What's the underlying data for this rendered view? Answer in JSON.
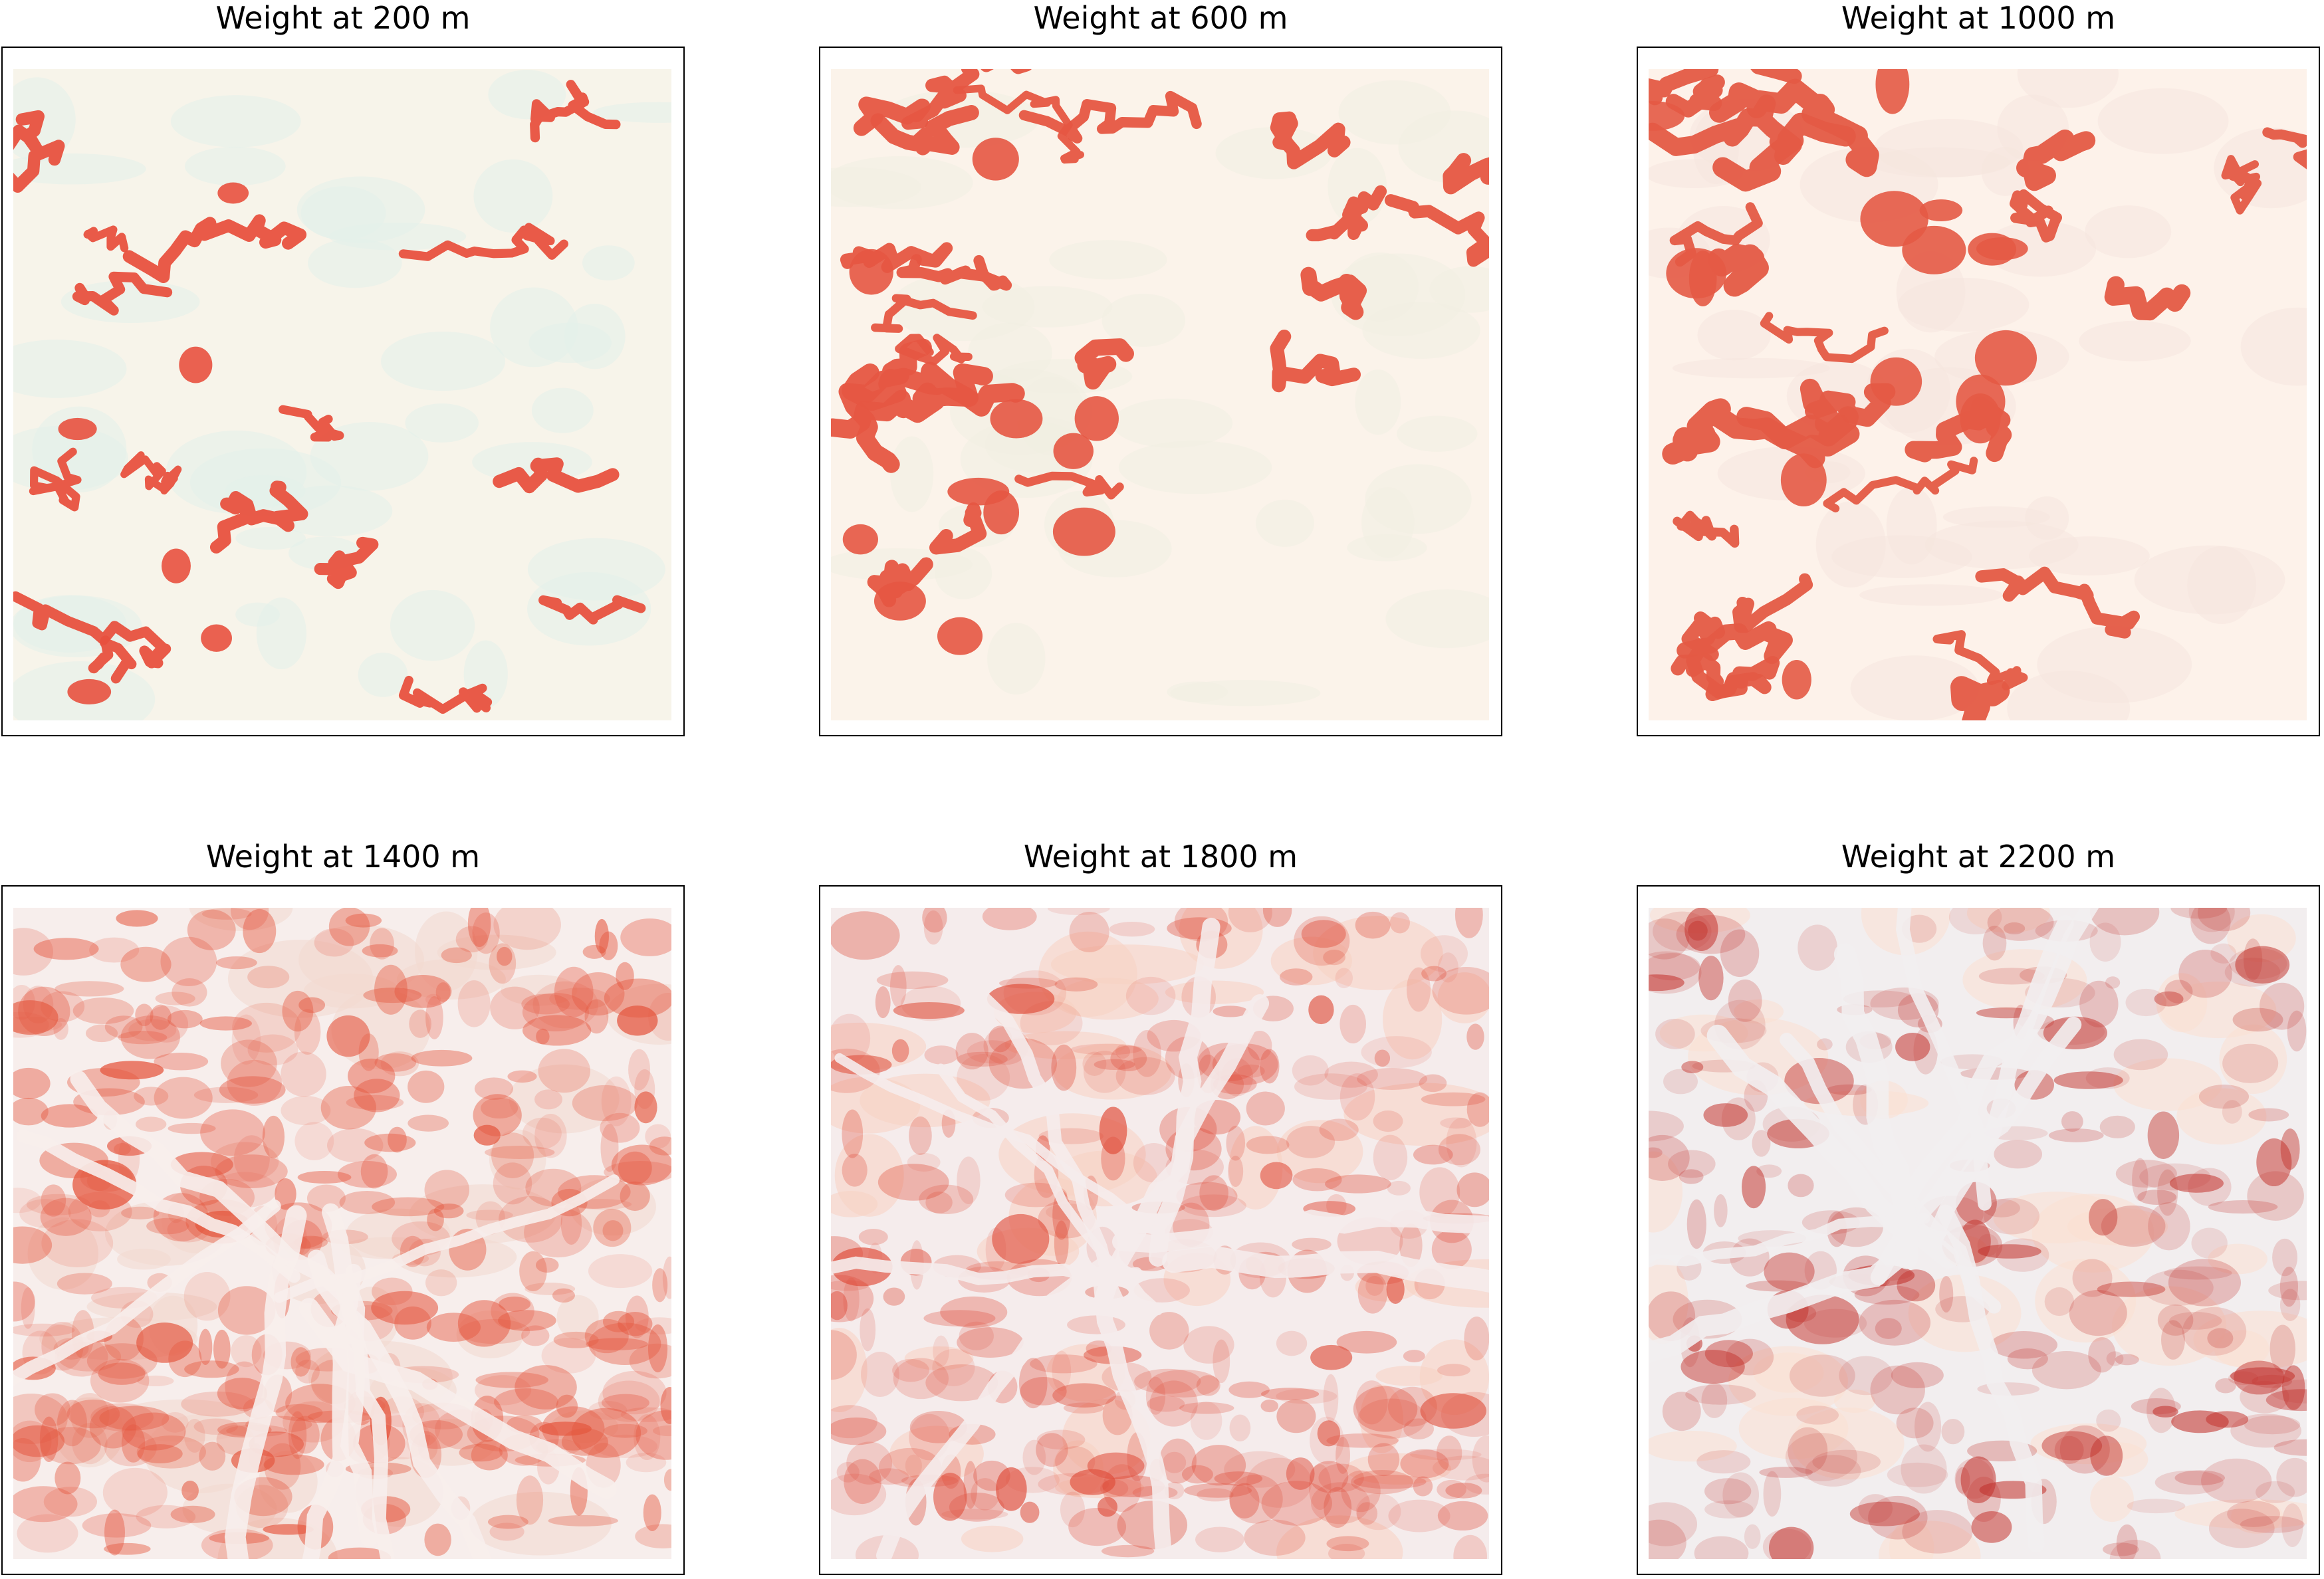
{
  "panels": [
    {
      "title": "Weight at 200 m",
      "base": "#f7f4ea",
      "tint": "#e4f0ea",
      "fill": "#e8513f",
      "coverage": 0.25,
      "seed": 11,
      "style": "channels"
    },
    {
      "title": "Weight at 600 m",
      "base": "#fbf3ea",
      "tint": "#f1eee2",
      "fill": "#e65642",
      "coverage": 0.45,
      "seed": 23,
      "style": "channels"
    },
    {
      "title": "Weight at 1000 m",
      "base": "#fdf2ea",
      "tint": "#f6e6df",
      "fill": "#e45a45",
      "coverage": 0.6,
      "seed": 37,
      "style": "channels"
    },
    {
      "title": "Weight at 1400 m",
      "base": "#f7eeec",
      "tint": "#f3d8cf",
      "fill": "#e5573f",
      "coverage": 0.7,
      "seed": 41,
      "style": "gradient"
    },
    {
      "title": "Weight at 1800 m",
      "base": "#f5ecec",
      "tint": "#f8d2c2",
      "fill": "#df4a37",
      "coverage": 0.5,
      "seed": 53,
      "style": "gradient"
    },
    {
      "title": "Weight at 2200 m",
      "base": "#f2eeef",
      "tint": "#fbe0d2",
      "fill": "#c2302a",
      "coverage": 0.3,
      "seed": 67,
      "style": "gradient"
    }
  ]
}
